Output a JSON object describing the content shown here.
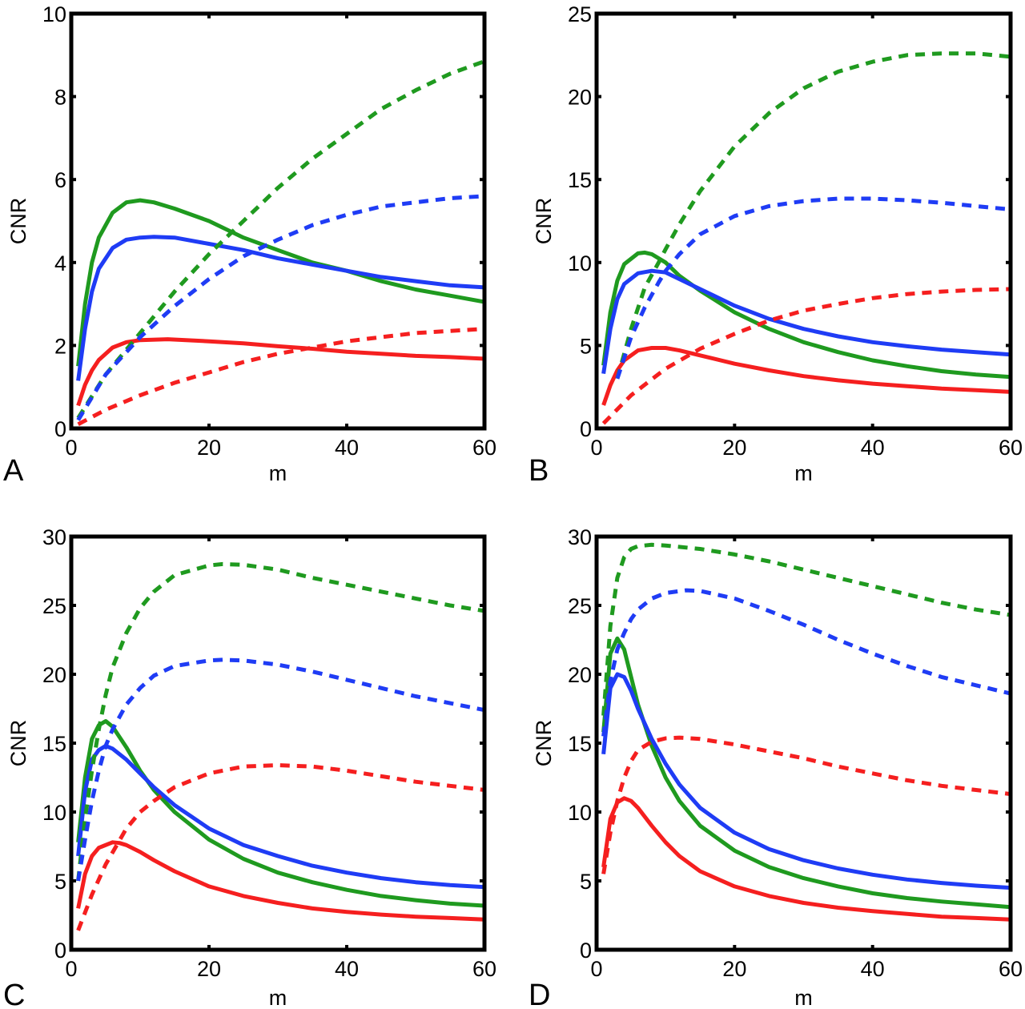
{
  "figure": {
    "series_styles": {
      "green": "#1f9a1f",
      "blue": "#1f3cf5",
      "red": "#f51f1f"
    }
  },
  "chart_data": [
    {
      "panel": "A",
      "type": "line",
      "xlabel": "m",
      "ylabel": "CNR",
      "xlim": [
        0,
        60
      ],
      "ylim": [
        0,
        10
      ],
      "xticks": [
        0,
        20,
        40,
        60
      ],
      "yticks": [
        0,
        2,
        4,
        6,
        8,
        10
      ],
      "grid": false,
      "series": [
        {
          "name": "green-solid",
          "color": "green",
          "style": "solid",
          "x": [
            1,
            2,
            3,
            4,
            6,
            8,
            10,
            12,
            15,
            20,
            25,
            30,
            35,
            40,
            45,
            50,
            55,
            60
          ],
          "y": [
            1.5,
            3.0,
            4.0,
            4.6,
            5.2,
            5.45,
            5.5,
            5.45,
            5.3,
            5.0,
            4.6,
            4.3,
            4.0,
            3.8,
            3.55,
            3.35,
            3.2,
            3.05
          ]
        },
        {
          "name": "blue-solid",
          "color": "blue",
          "style": "solid",
          "x": [
            1,
            2,
            3,
            4,
            6,
            8,
            10,
            12,
            15,
            20,
            25,
            30,
            35,
            40,
            45,
            50,
            55,
            60
          ],
          "y": [
            1.15,
            2.4,
            3.3,
            3.85,
            4.35,
            4.55,
            4.6,
            4.62,
            4.6,
            4.45,
            4.3,
            4.1,
            3.95,
            3.8,
            3.65,
            3.55,
            3.45,
            3.4
          ]
        },
        {
          "name": "red-solid",
          "color": "red",
          "style": "solid",
          "x": [
            1,
            2,
            3,
            4,
            6,
            8,
            10,
            14,
            20,
            25,
            30,
            35,
            40,
            45,
            50,
            55,
            60
          ],
          "y": [
            0.55,
            1.05,
            1.4,
            1.65,
            1.95,
            2.08,
            2.13,
            2.15,
            2.1,
            2.05,
            1.98,
            1.92,
            1.85,
            1.8,
            1.75,
            1.72,
            1.68
          ]
        },
        {
          "name": "green-dashed",
          "color": "green",
          "style": "dashed",
          "x": [
            1,
            5,
            10,
            15,
            20,
            25,
            30,
            35,
            40,
            45,
            50,
            55,
            60
          ],
          "y": [
            0.25,
            1.3,
            2.3,
            3.3,
            4.2,
            5.0,
            5.8,
            6.5,
            7.1,
            7.7,
            8.15,
            8.55,
            8.85
          ]
        },
        {
          "name": "blue-dashed",
          "color": "blue",
          "style": "dashed",
          "x": [
            1,
            5,
            10,
            15,
            20,
            25,
            30,
            35,
            40,
            45,
            50,
            55,
            60
          ],
          "y": [
            0.2,
            1.3,
            2.2,
            2.95,
            3.6,
            4.15,
            4.55,
            4.9,
            5.15,
            5.35,
            5.45,
            5.55,
            5.6
          ]
        },
        {
          "name": "red-dashed",
          "color": "red",
          "style": "dashed",
          "x": [
            1,
            5,
            10,
            15,
            20,
            25,
            30,
            35,
            40,
            45,
            50,
            55,
            60
          ],
          "y": [
            0.1,
            0.45,
            0.8,
            1.1,
            1.35,
            1.6,
            1.8,
            1.95,
            2.1,
            2.2,
            2.3,
            2.35,
            2.4
          ]
        }
      ]
    },
    {
      "panel": "B",
      "type": "line",
      "xlabel": "m",
      "ylabel": "CNR",
      "xlim": [
        0,
        60
      ],
      "ylim": [
        0,
        25
      ],
      "xticks": [
        0,
        20,
        40,
        60
      ],
      "yticks": [
        0,
        5,
        10,
        15,
        20,
        25
      ],
      "grid": false,
      "series": [
        {
          "name": "green-solid",
          "color": "green",
          "style": "solid",
          "x": [
            1,
            2,
            3,
            4,
            6,
            7,
            8,
            10,
            12,
            15,
            20,
            25,
            30,
            35,
            40,
            45,
            50,
            55,
            60
          ],
          "y": [
            3.8,
            7.0,
            8.9,
            9.9,
            10.55,
            10.6,
            10.5,
            10.0,
            9.2,
            8.3,
            7.0,
            6.0,
            5.2,
            4.6,
            4.1,
            3.75,
            3.45,
            3.25,
            3.1
          ]
        },
        {
          "name": "blue-solid",
          "color": "blue",
          "style": "solid",
          "x": [
            1,
            2,
            3,
            4,
            6,
            8,
            10,
            12,
            15,
            20,
            25,
            30,
            35,
            40,
            45,
            50,
            55,
            60
          ],
          "y": [
            3.3,
            6.0,
            7.8,
            8.7,
            9.35,
            9.5,
            9.4,
            9.0,
            8.4,
            7.4,
            6.6,
            6.0,
            5.55,
            5.2,
            4.95,
            4.75,
            4.6,
            4.45
          ]
        },
        {
          "name": "red-solid",
          "color": "red",
          "style": "solid",
          "x": [
            1,
            2,
            3,
            4,
            6,
            8,
            10,
            12,
            15,
            20,
            25,
            30,
            35,
            40,
            45,
            50,
            55,
            60
          ],
          "y": [
            1.4,
            2.6,
            3.5,
            4.1,
            4.7,
            4.85,
            4.85,
            4.7,
            4.4,
            3.9,
            3.5,
            3.15,
            2.9,
            2.7,
            2.55,
            2.4,
            2.3,
            2.2
          ]
        },
        {
          "name": "green-dashed",
          "color": "green",
          "style": "dashed",
          "x": [
            3,
            5,
            7,
            9,
            10,
            12,
            15,
            20,
            25,
            30,
            35,
            40,
            45,
            50,
            55,
            60
          ],
          "y": [
            3.0,
            6.0,
            8.5,
            10.0,
            10.8,
            12.3,
            14.3,
            17.0,
            19.0,
            20.5,
            21.5,
            22.1,
            22.5,
            22.6,
            22.6,
            22.4
          ]
        },
        {
          "name": "blue-dashed",
          "color": "blue",
          "style": "dashed",
          "x": [
            3,
            5,
            7,
            9,
            10,
            12,
            15,
            20,
            25,
            30,
            35,
            40,
            45,
            50,
            55,
            60
          ],
          "y": [
            3.0,
            5.5,
            7.3,
            8.8,
            9.5,
            10.5,
            11.7,
            12.8,
            13.4,
            13.7,
            13.85,
            13.85,
            13.75,
            13.6,
            13.4,
            13.2
          ]
        },
        {
          "name": "red-dashed",
          "color": "red",
          "style": "dashed",
          "x": [
            1,
            5,
            10,
            15,
            20,
            25,
            30,
            35,
            40,
            45,
            50,
            55,
            60
          ],
          "y": [
            0.3,
            2.0,
            3.6,
            4.8,
            5.7,
            6.5,
            7.1,
            7.5,
            7.85,
            8.1,
            8.25,
            8.35,
            8.4
          ]
        }
      ]
    },
    {
      "panel": "C",
      "type": "line",
      "xlabel": "m",
      "ylabel": "CNR",
      "xlim": [
        0,
        60
      ],
      "ylim": [
        0,
        30
      ],
      "xticks": [
        0,
        20,
        40,
        60
      ],
      "yticks": [
        0,
        5,
        10,
        15,
        20,
        25,
        30
      ],
      "grid": false,
      "series": [
        {
          "name": "green-solid",
          "color": "green",
          "style": "solid",
          "x": [
            1,
            2,
            3,
            4,
            5,
            6,
            8,
            10,
            12,
            15,
            20,
            25,
            30,
            35,
            40,
            45,
            50,
            55,
            60
          ],
          "y": [
            7.8,
            12.5,
            15.3,
            16.3,
            16.6,
            16.2,
            14.7,
            13.0,
            11.6,
            10.0,
            8.0,
            6.6,
            5.6,
            4.9,
            4.35,
            3.9,
            3.6,
            3.35,
            3.2
          ]
        },
        {
          "name": "blue-solid",
          "color": "blue",
          "style": "solid",
          "x": [
            1,
            2,
            3,
            4,
            5,
            6,
            8,
            10,
            12,
            15,
            20,
            25,
            30,
            35,
            40,
            45,
            50,
            55,
            60
          ],
          "y": [
            6.8,
            11.5,
            13.8,
            14.5,
            14.8,
            14.6,
            13.8,
            12.8,
            11.8,
            10.5,
            8.8,
            7.6,
            6.8,
            6.1,
            5.6,
            5.2,
            4.9,
            4.7,
            4.55
          ]
        },
        {
          "name": "red-solid",
          "color": "red",
          "style": "solid",
          "x": [
            1,
            2,
            3,
            4,
            6,
            7,
            8,
            10,
            12,
            15,
            20,
            25,
            30,
            35,
            40,
            45,
            50,
            55,
            60
          ],
          "y": [
            3.0,
            5.5,
            6.8,
            7.4,
            7.8,
            7.75,
            7.6,
            7.1,
            6.5,
            5.7,
            4.6,
            3.9,
            3.4,
            3.0,
            2.75,
            2.55,
            2.4,
            2.3,
            2.2
          ]
        },
        {
          "name": "green-dashed",
          "color": "green",
          "style": "dashed",
          "x": [
            1,
            2,
            3,
            4,
            5,
            6,
            8,
            10,
            12,
            15,
            20,
            22,
            25,
            30,
            35,
            40,
            45,
            50,
            55,
            60
          ],
          "y": [
            5.0,
            9.5,
            13.0,
            16.0,
            18.5,
            20.5,
            23.0,
            24.8,
            26.0,
            27.2,
            27.9,
            28.0,
            27.95,
            27.6,
            27.0,
            26.5,
            26.0,
            25.5,
            25.0,
            24.6
          ]
        },
        {
          "name": "blue-dashed",
          "color": "blue",
          "style": "dashed",
          "x": [
            1,
            2,
            3,
            4,
            5,
            6,
            8,
            10,
            12,
            15,
            20,
            22,
            25,
            30,
            35,
            40,
            45,
            50,
            55,
            60
          ],
          "y": [
            5.0,
            8.0,
            10.8,
            13.0,
            14.8,
            16.0,
            17.8,
            19.0,
            19.9,
            20.6,
            21.0,
            21.05,
            21.0,
            20.7,
            20.2,
            19.6,
            19.0,
            18.4,
            17.9,
            17.4
          ]
        },
        {
          "name": "red-dashed",
          "color": "red",
          "style": "dashed",
          "x": [
            1,
            3,
            5,
            8,
            10,
            12,
            15,
            20,
            25,
            30,
            35,
            40,
            45,
            50,
            55,
            60
          ],
          "y": [
            1.4,
            4.0,
            6.2,
            8.8,
            10.0,
            10.8,
            11.8,
            12.8,
            13.3,
            13.4,
            13.3,
            13.0,
            12.6,
            12.2,
            11.9,
            11.6
          ]
        }
      ]
    },
    {
      "panel": "D",
      "type": "line",
      "xlabel": "m",
      "ylabel": "CNR",
      "xlim": [
        0,
        60
      ],
      "ylim": [
        0,
        30
      ],
      "xticks": [
        0,
        20,
        40,
        60
      ],
      "yticks": [
        0,
        5,
        10,
        15,
        20,
        25,
        30
      ],
      "grid": false,
      "series": [
        {
          "name": "green-solid",
          "color": "green",
          "style": "solid",
          "x": [
            1,
            2,
            3,
            4,
            5,
            6,
            8,
            10,
            12,
            15,
            20,
            25,
            30,
            35,
            40,
            45,
            50,
            55,
            60
          ],
          "y": [
            15.8,
            21.5,
            22.6,
            21.8,
            19.8,
            17.8,
            14.8,
            12.5,
            10.8,
            9.0,
            7.2,
            6.0,
            5.2,
            4.6,
            4.1,
            3.75,
            3.5,
            3.3,
            3.1
          ]
        },
        {
          "name": "blue-solid",
          "color": "blue",
          "style": "solid",
          "x": [
            1,
            2,
            3,
            4,
            5,
            6,
            8,
            10,
            12,
            15,
            20,
            25,
            30,
            35,
            40,
            45,
            50,
            55,
            60
          ],
          "y": [
            14.2,
            19.0,
            20.0,
            19.8,
            18.8,
            17.5,
            15.3,
            13.5,
            12.0,
            10.3,
            8.5,
            7.3,
            6.5,
            5.9,
            5.45,
            5.1,
            4.85,
            4.65,
            4.5
          ]
        },
        {
          "name": "red-solid",
          "color": "red",
          "style": "solid",
          "x": [
            1,
            2,
            3,
            4,
            5,
            6,
            8,
            10,
            12,
            15,
            20,
            25,
            30,
            35,
            40,
            45,
            50,
            55,
            60
          ],
          "y": [
            6.0,
            9.5,
            10.7,
            11.0,
            10.8,
            10.3,
            9.0,
            7.8,
            6.8,
            5.7,
            4.6,
            3.9,
            3.4,
            3.05,
            2.8,
            2.6,
            2.4,
            2.3,
            2.2
          ]
        },
        {
          "name": "green-dashed",
          "color": "green",
          "style": "dashed",
          "x": [
            1,
            2,
            3,
            4,
            5,
            6,
            8,
            10,
            15,
            20,
            25,
            30,
            35,
            40,
            45,
            50,
            55,
            60
          ],
          "y": [
            17.0,
            23.5,
            27.0,
            28.5,
            29.1,
            29.3,
            29.4,
            29.35,
            29.1,
            28.7,
            28.2,
            27.6,
            27.0,
            26.4,
            25.8,
            25.2,
            24.7,
            24.3
          ]
        },
        {
          "name": "blue-dashed",
          "color": "blue",
          "style": "dashed",
          "x": [
            1,
            2,
            3,
            4,
            5,
            6,
            8,
            10,
            13,
            15,
            20,
            25,
            30,
            35,
            40,
            45,
            50,
            55,
            60
          ],
          "y": [
            15.5,
            19.5,
            21.8,
            23.0,
            24.0,
            24.7,
            25.5,
            25.9,
            26.1,
            26.05,
            25.5,
            24.6,
            23.6,
            22.5,
            21.5,
            20.6,
            19.8,
            19.2,
            18.6
          ]
        },
        {
          "name": "red-dashed",
          "color": "red",
          "style": "dashed",
          "x": [
            1,
            2,
            3,
            4,
            5,
            6,
            8,
            10,
            12,
            15,
            20,
            25,
            30,
            35,
            40,
            45,
            50,
            55,
            60
          ],
          "y": [
            5.5,
            8.5,
            10.8,
            12.5,
            13.7,
            14.5,
            15.1,
            15.35,
            15.4,
            15.3,
            14.9,
            14.4,
            13.9,
            13.3,
            12.8,
            12.3,
            11.9,
            11.6,
            11.3
          ]
        }
      ]
    }
  ]
}
